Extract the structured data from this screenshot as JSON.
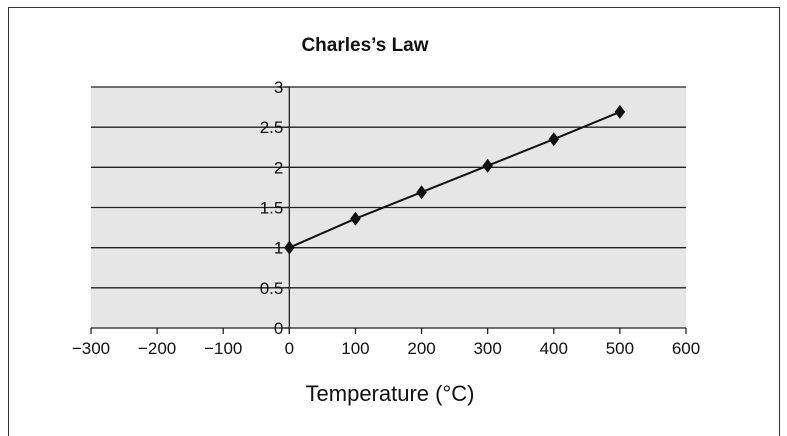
{
  "chart_data": {
    "type": "line",
    "title": "Charles’s Law",
    "xlabel": "Temperature (°C)",
    "ylabel": "",
    "xlim": [
      -300,
      600
    ],
    "ylim": [
      0,
      3
    ],
    "xticks": [
      -300,
      -200,
      -100,
      0,
      100,
      200,
      300,
      400,
      500,
      600
    ],
    "xtick_labels": [
      "−300",
      "−200",
      "−100",
      "0",
      "100",
      "200",
      "300",
      "400",
      "500",
      "600"
    ],
    "yticks": [
      0,
      0.5,
      1,
      1.5,
      2,
      2.5,
      3
    ],
    "ytick_labels": [
      "0",
      "0.5",
      "1",
      "1.5",
      "2",
      "2.5",
      "3"
    ],
    "grid": true,
    "plot_background": "#e6e6e6",
    "series": [
      {
        "x": [
          0,
          100,
          200,
          300,
          400,
          500
        ],
        "y": [
          1,
          1.36,
          1.69,
          2.02,
          2.35,
          2.69
        ],
        "color": "#111111",
        "marker": "diamond"
      }
    ]
  }
}
